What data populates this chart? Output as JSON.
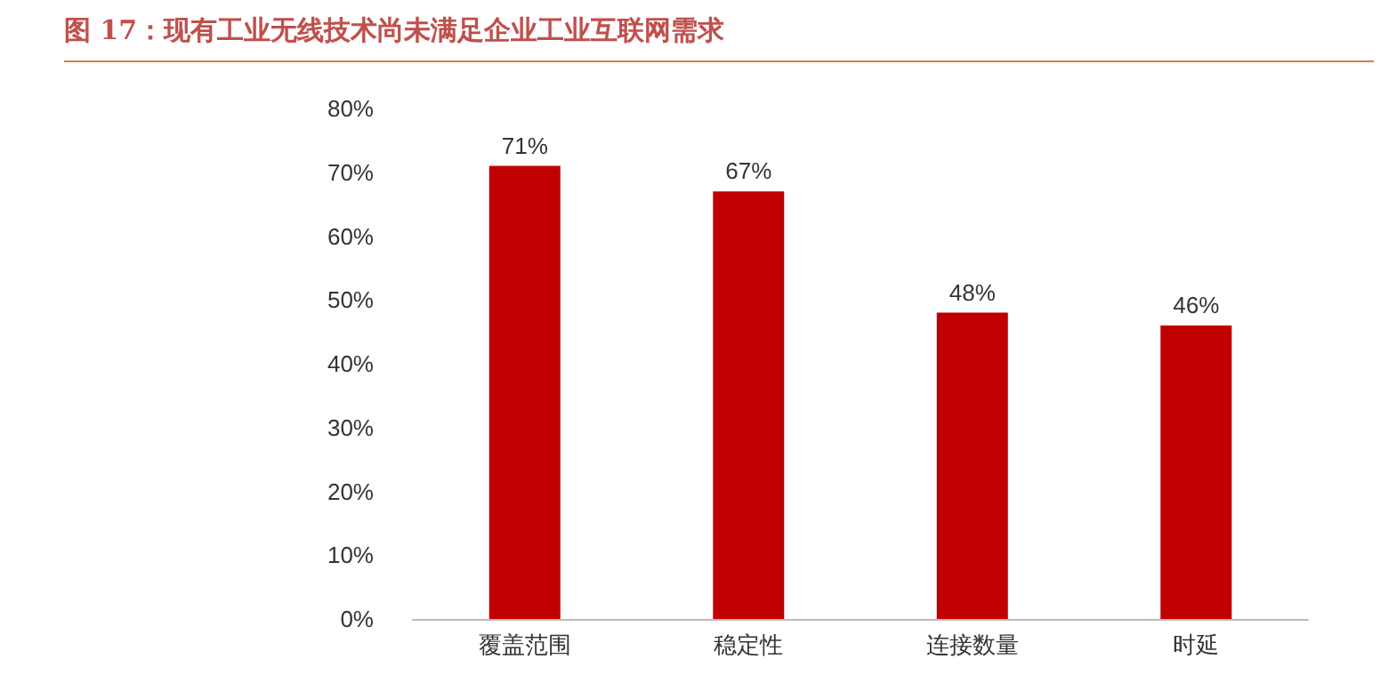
{
  "chart_data": {
    "type": "bar",
    "title": "图 17：现有工业无线技术尚未满足企业工业互联网需求",
    "categories": [
      "覆盖范围",
      "稳定性",
      "连接数量",
      "时延"
    ],
    "values": [
      71,
      67,
      48,
      46
    ],
    "color": "#c00000",
    "value_labels": [
      "71%",
      "67%",
      "48%",
      "46%"
    ],
    "ylim": [
      0,
      80
    ],
    "yticks": [
      {
        "value": 0,
        "label": "0%"
      },
      {
        "value": 10,
        "label": "10%"
      },
      {
        "value": 20,
        "label": "20%"
      },
      {
        "value": 30,
        "label": "30%"
      },
      {
        "value": 40,
        "label": "40%"
      },
      {
        "value": 50,
        "label": "50%"
      },
      {
        "value": 60,
        "label": "60%"
      },
      {
        "value": 70,
        "label": "70%"
      },
      {
        "value": 80,
        "label": "80%"
      }
    ],
    "grid": false
  }
}
